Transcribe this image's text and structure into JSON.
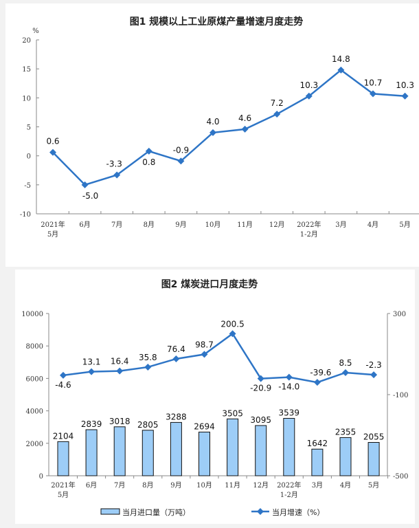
{
  "chart_data": [
    {
      "type": "line",
      "title": "图1  规模以上工业原煤产量增速月度走势",
      "ylabel": "%",
      "categories": [
        [
          "2021年",
          "5月"
        ],
        [
          "6月"
        ],
        [
          "7月"
        ],
        [
          "8月"
        ],
        [
          "9月"
        ],
        [
          "10月"
        ],
        [
          "11月"
        ],
        [
          "12月"
        ],
        [
          "2022年",
          "1-2月"
        ],
        [
          "3月"
        ],
        [
          "4月"
        ],
        [
          "5月"
        ]
      ],
      "series": [
        {
          "values": [
            0.6,
            -5.0,
            -3.3,
            0.8,
            -0.9,
            4.0,
            4.6,
            7.2,
            10.3,
            14.8,
            10.7,
            10.3
          ],
          "labels": [
            "0.6",
            "-5.0",
            "-3.3",
            "0.8",
            "-0.9",
            "4.0",
            "4.6",
            "7.2",
            "10.3",
            "14.8",
            "10.7",
            "10.3"
          ]
        }
      ],
      "ylim": [
        -10,
        20
      ],
      "yticks": [
        "20",
        "15",
        "10",
        "5",
        "0",
        "-5",
        "-10"
      ],
      "grid": false,
      "color": "#2e75c6"
    },
    {
      "type": "bar+line",
      "title": "图2  煤炭进口月度走势",
      "categories": [
        [
          "2021年",
          "5月"
        ],
        [
          "6月"
        ],
        [
          "7月"
        ],
        [
          "8月"
        ],
        [
          "9月"
        ],
        [
          "10月"
        ],
        [
          "11月"
        ],
        [
          "12月"
        ],
        [
          "2022年",
          "1-2月"
        ],
        [
          "3月"
        ],
        [
          "4月"
        ],
        [
          "5月"
        ]
      ],
      "series": [
        {
          "name": "当月进口量（万吨）",
          "type": "bar",
          "axis": "left",
          "values": [
            2104,
            2839,
            3018,
            2805,
            3288,
            2694,
            3505,
            3095,
            3539,
            1642,
            2355,
            2055
          ],
          "labels": [
            "2104",
            "2839",
            "3018",
            "2805",
            "3288",
            "2694",
            "3505",
            "3095",
            "3539",
            "1642",
            "2355",
            "2055"
          ],
          "color": "#9dcdf7"
        },
        {
          "name": "当月增速（%）",
          "type": "line",
          "axis": "right",
          "values": [
            -4.6,
            13.1,
            16.4,
            35.8,
            76.4,
            98.7,
            200.5,
            -20.9,
            -14.0,
            -39.6,
            8.5,
            -2.3
          ],
          "labels": [
            "-4.6",
            "13.1",
            "16.4",
            "35.8",
            "76.4",
            "98.7",
            "200.5",
            "-20.9",
            "-14.0",
            "-39.6",
            "8.5",
            "-2.3"
          ],
          "color": "#2e75c6"
        }
      ],
      "ylim_left": [
        0,
        10000
      ],
      "yticks_left": [
        "10000",
        "8000",
        "6000",
        "4000",
        "2000",
        "0"
      ],
      "ylim_right": [
        -500,
        300
      ],
      "yticks_right": [
        "300",
        "-100",
        "-500"
      ],
      "grid": false,
      "legend": "bottom"
    }
  ]
}
